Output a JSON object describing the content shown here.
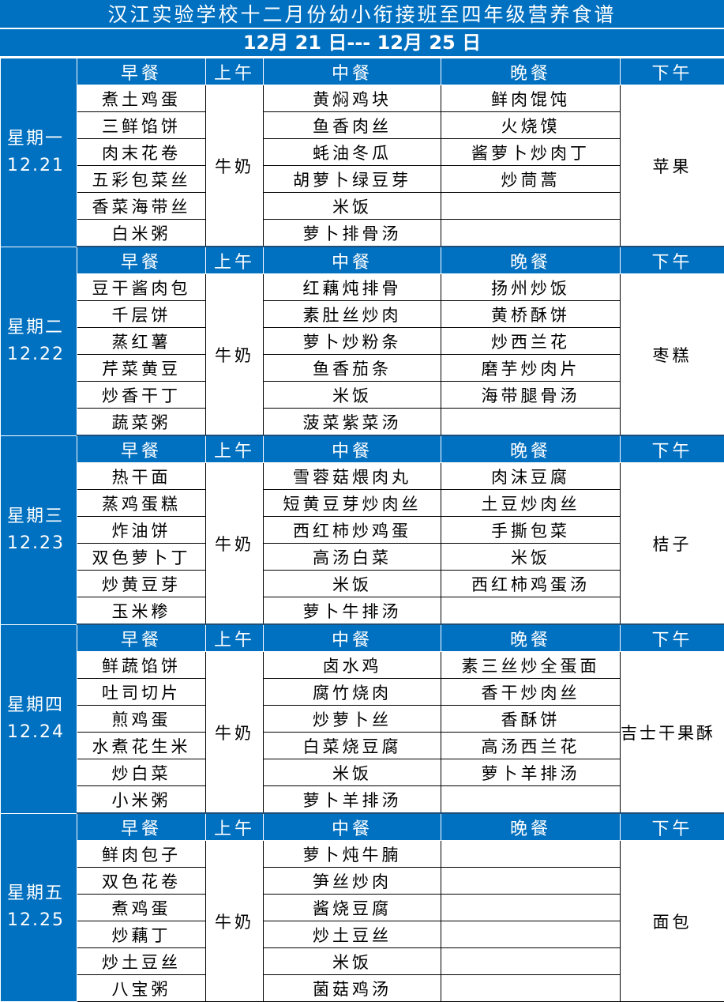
{
  "title": "汉江实验学校十二月份幼小衔接班至四年级营养食谱",
  "date_range": "12月 21 日--- 12月 25 日",
  "headers": {
    "breakfast": "早餐",
    "am": "上午",
    "lunch": "中餐",
    "dinner": "晚餐",
    "pm": "下午"
  },
  "colors": {
    "header_blue": "#0070C0",
    "text": "#000000",
    "header_text": "#FFFFFF"
  },
  "days": [
    {
      "weekday": "星期一",
      "date": "12.21",
      "breakfast": [
        "煮土鸡蛋",
        "三鲜馅饼",
        "肉末花卷",
        "五彩包菜丝",
        "香菜海带丝",
        "白米粥"
      ],
      "am": "牛奶",
      "lunch": [
        "黄焖鸡块",
        "鱼香肉丝",
        "蚝油冬瓜",
        "胡萝卜绿豆芽",
        "米饭",
        "萝卜排骨汤"
      ],
      "dinner": [
        "鲜肉馄饨",
        "火烧馍",
        "酱萝卜炒肉丁",
        "炒茼蒿",
        "",
        ""
      ],
      "pm": "苹果"
    },
    {
      "weekday": "星期二",
      "date": "12.22",
      "breakfast": [
        "豆干酱肉包",
        "千层饼",
        "蒸红薯",
        "芹菜黄豆",
        "炒香干丁",
        "蔬菜粥"
      ],
      "am": "牛奶",
      "lunch": [
        "红藕炖排骨",
        "素肚丝炒肉",
        "萝卜炒粉条",
        "鱼香茄条",
        "米饭",
        "菠菜紫菜汤"
      ],
      "dinner": [
        "扬州炒饭",
        "黄桥酥饼",
        "炒西兰花",
        "磨芋炒肉片",
        "海带腿骨汤",
        ""
      ],
      "pm": "枣糕"
    },
    {
      "weekday": "星期三",
      "date": "12.23",
      "breakfast": [
        "热干面",
        "蒸鸡蛋糕",
        "炸油饼",
        "双色萝卜丁",
        "炒黄豆芽",
        "玉米糁"
      ],
      "am": "牛奶",
      "lunch": [
        "雪蓉菇煨肉丸",
        "短黄豆芽炒肉丝",
        "西红柿炒鸡蛋",
        "高汤白菜",
        "米饭",
        "萝卜牛排汤"
      ],
      "dinner": [
        "肉沫豆腐",
        "土豆炒肉丝",
        "手撕包菜",
        "米饭",
        "西红柿鸡蛋汤",
        ""
      ],
      "pm": "桔子"
    },
    {
      "weekday": "星期四",
      "date": "12.24",
      "breakfast": [
        "鲜蔬馅饼",
        "吐司切片",
        "煎鸡蛋",
        "水煮花生米",
        "炒白菜",
        "小米粥"
      ],
      "am": "牛奶",
      "lunch": [
        "卤水鸡",
        "腐竹烧肉",
        "炒萝卜丝",
        "白菜烧豆腐",
        "米饭",
        "萝卜羊排汤"
      ],
      "dinner": [
        "素三丝炒全蛋面",
        "香干炒肉丝",
        "香酥饼",
        "高汤西兰花",
        "萝卜羊排汤",
        ""
      ],
      "pm": "吉士干果酥"
    },
    {
      "weekday": "星期五",
      "date": "12.25",
      "breakfast": [
        "鲜肉包子",
        "双色花卷",
        "煮鸡蛋",
        "炒藕丁",
        "炒土豆丝",
        "八宝粥"
      ],
      "am": "牛奶",
      "lunch": [
        "萝卜炖牛腩",
        "笋丝炒肉",
        "酱烧豆腐",
        "炒土豆丝",
        "米饭",
        "菌菇鸡汤"
      ],
      "dinner": [
        "",
        "",
        "",
        "",
        "",
        ""
      ],
      "pm": "面包"
    }
  ]
}
